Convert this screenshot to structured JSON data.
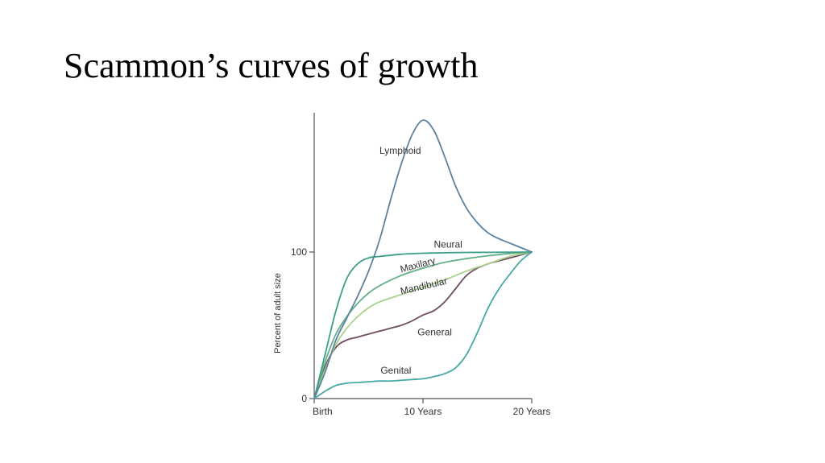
{
  "slide": {
    "title": "Scammon’s curves of growth"
  },
  "chart_data": {
    "type": "line",
    "title": "",
    "xlabel": "",
    "ylabel": "Percent of adult size",
    "xlim": [
      0,
      20
    ],
    "ylim": [
      0,
      200
    ],
    "x_ticks": [
      {
        "value": 0,
        "label": "Birth"
      },
      {
        "value": 10,
        "label": "10 Years"
      },
      {
        "value": 20,
        "label": "20 Years"
      }
    ],
    "y_ticks": [
      {
        "value": 0,
        "label": "0"
      },
      {
        "value": 100,
        "label": "100"
      }
    ],
    "grid": false,
    "legend": "none",
    "series": [
      {
        "name": "Lymphoid",
        "color": "#5b82a0",
        "x": [
          0,
          1,
          2,
          3,
          4,
          5,
          6,
          7,
          8,
          9,
          10,
          11,
          12,
          13,
          14,
          15,
          16,
          17,
          18,
          19,
          20
        ],
        "y": [
          0,
          18,
          40,
          55,
          70,
          87,
          108,
          135,
          160,
          180,
          190,
          183,
          165,
          145,
          130,
          120,
          113,
          109,
          106,
          103,
          100
        ]
      },
      {
        "name": "Neural",
        "color": "#3e9f88",
        "x": [
          0,
          1,
          2,
          3,
          4,
          5,
          6,
          8,
          10,
          12,
          14,
          16,
          18,
          20
        ],
        "y": [
          0,
          30,
          60,
          82,
          92,
          96,
          97,
          98.5,
          99.2,
          99.5,
          99.7,
          99.8,
          99.9,
          100
        ]
      },
      {
        "name": "Maxilary",
        "color": "#63b088",
        "x": [
          0,
          1,
          2,
          3,
          4,
          5,
          6,
          8,
          10,
          12,
          14,
          16,
          18,
          20
        ],
        "y": [
          0,
          25,
          44,
          56,
          65,
          72,
          77,
          84,
          89,
          93,
          95.5,
          97.5,
          99,
          100
        ]
      },
      {
        "name": "Mandibular",
        "color": "#a8d18d",
        "x": [
          0,
          1,
          2,
          3,
          4,
          5,
          6,
          8,
          10,
          12,
          14,
          16,
          18,
          20
        ],
        "y": [
          0,
          20,
          37,
          48,
          56,
          62,
          66,
          71,
          76,
          81,
          87,
          92,
          97,
          100
        ]
      },
      {
        "name": "General",
        "color": "#6e4b5e",
        "x": [
          0,
          1,
          2,
          3,
          4,
          5,
          6,
          7,
          8,
          9,
          10,
          11,
          12,
          13,
          14,
          15,
          16,
          17,
          18,
          19,
          20
        ],
        "y": [
          0,
          22,
          35,
          40,
          42,
          44,
          46,
          48,
          50,
          53,
          57,
          60,
          66,
          75,
          84,
          89,
          92,
          94,
          96,
          98,
          100
        ]
      },
      {
        "name": "Genital",
        "color": "#45a9a4",
        "x": [
          0,
          1,
          2,
          3,
          4,
          5,
          6,
          7,
          8,
          9,
          10,
          11,
          12,
          13,
          14,
          15,
          16,
          17,
          18,
          19,
          20
        ],
        "y": [
          0,
          5,
          9,
          10.5,
          11,
          11.5,
          12,
          12,
          12.5,
          13,
          13.5,
          15,
          17,
          21,
          30,
          45,
          62,
          75,
          85,
          94,
          100
        ]
      }
    ],
    "annotations": [
      {
        "text": "Lymphoid",
        "series": "Lymphoid",
        "x": 6,
        "y": 167,
        "rotate": 0
      },
      {
        "text": "Neural",
        "series": "Neural",
        "x": 11,
        "y": 103,
        "rotate": 0
      },
      {
        "text": "Maxilary",
        "series": "Maxilary",
        "x": 8,
        "y": 86,
        "rotate": -15
      },
      {
        "text": "Mandibular",
        "series": "Mandibular",
        "x": 8,
        "y": 71,
        "rotate": -13
      },
      {
        "text": "General",
        "series": "General",
        "x": 9.5,
        "y": 43,
        "rotate": 0
      },
      {
        "text": "Genital",
        "series": "Genital",
        "x": 6.1,
        "y": 17,
        "rotate": 0
      }
    ]
  }
}
